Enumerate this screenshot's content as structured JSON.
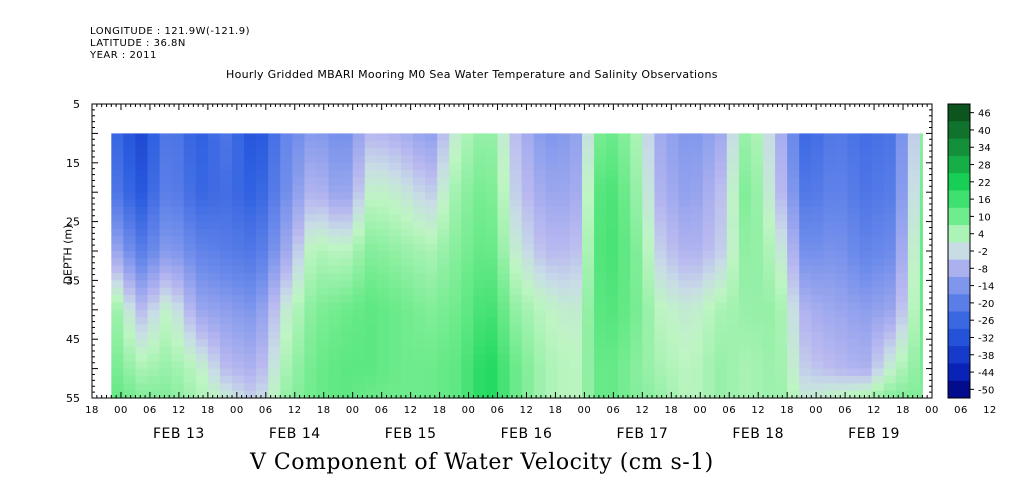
{
  "header": {
    "longitude": "LONGITUDE : 121.9W(-121.9)",
    "latitude": "LATITUDE : 36.8N",
    "year": "YEAR : 2011"
  },
  "title": "Hourly Gridded MBARI Mooring M0 Sea Water Temperature and Salinity Observations",
  "variable_title": "V Component of Water Velocity (cm s-1)",
  "colors": {
    "negative_strong": "#00008b",
    "negative_mid": "#3a6fe0",
    "near_zero_negative": "#b8b8ee",
    "near_zero_positive": "#bff2bf",
    "positive_mid": "#19e06a",
    "positive_strong": "#0b4f1c"
  },
  "chart_data": {
    "type": "heatmap",
    "title": "Hourly Gridded MBARI Mooring M0 Sea Water Temperature and Salinity Observations",
    "xlabel": "",
    "ylabel": "DEPTH (m)",
    "y_range": [
      5,
      55
    ],
    "y_inverted": true,
    "y_ticks": [
      5,
      15,
      25,
      35,
      45,
      55
    ],
    "x_range": [
      "FEB 12 18:00",
      "FEB 20 00:00"
    ],
    "x_hour_ticks": [
      "18",
      "00",
      "06",
      "12",
      "18",
      "00",
      "06",
      "12",
      "18",
      "00",
      "06",
      "12",
      "18",
      "00",
      "06",
      "12",
      "18",
      "00",
      "06",
      "12",
      "18",
      "00",
      "06",
      "12",
      "18",
      "00",
      "06",
      "12",
      "18",
      "00",
      "06",
      "12",
      "18",
      "00"
    ],
    "x_day_labels": [
      "FEB 13",
      "FEB 14",
      "FEB 15",
      "FEB 16",
      "FEB 17",
      "FEB 18",
      "FEB 19"
    ],
    "data_start": "FEB 12 22:00",
    "data_depth_top": 10,
    "colorbar": {
      "min": -50,
      "max": 50,
      "ticks": [
        "46",
        "40",
        "34",
        "28",
        "22",
        "16",
        "10",
        "4",
        "-2",
        "-8",
        "-14",
        "-20",
        "-26",
        "-32",
        "-38",
        "-44",
        "-50"
      ]
    },
    "profile_hours": [
      0,
      6,
      12,
      18,
      24,
      30,
      36,
      42,
      48,
      54,
      60,
      66,
      72,
      78,
      84,
      90,
      96,
      102,
      108,
      114,
      120,
      126,
      132,
      138,
      144,
      150,
      156,
      162,
      168
    ],
    "profile_depths": [
      10,
      20,
      30,
      40,
      50,
      55
    ],
    "v_values": [
      [
        -22,
        -18,
        -6,
        10,
        12,
        14
      ],
      [
        -32,
        -28,
        -18,
        -4,
        6,
        10
      ],
      [
        -18,
        -16,
        -10,
        4,
        8,
        10
      ],
      [
        -26,
        -24,
        -16,
        -8,
        4,
        6
      ],
      [
        -20,
        -22,
        -18,
        -10,
        -4,
        2
      ],
      [
        -30,
        -26,
        -20,
        -12,
        -6,
        -2
      ],
      [
        -16,
        -14,
        -8,
        2,
        6,
        8
      ],
      [
        -10,
        -4,
        6,
        10,
        12,
        12
      ],
      [
        -14,
        -10,
        4,
        12,
        14,
        14
      ],
      [
        -4,
        4,
        10,
        14,
        14,
        12
      ],
      [
        -6,
        2,
        8,
        12,
        12,
        12
      ],
      [
        -10,
        -2,
        6,
        10,
        12,
        12
      ],
      [
        4,
        8,
        10,
        12,
        14,
        14
      ],
      [
        10,
        12,
        14,
        18,
        22,
        22
      ],
      [
        -4,
        -2,
        2,
        8,
        12,
        12
      ],
      [
        -12,
        -8,
        -4,
        4,
        6,
        6
      ],
      [
        -10,
        -8,
        -4,
        2,
        4,
        4
      ],
      [
        14,
        18,
        18,
        16,
        14,
        14
      ],
      [
        8,
        10,
        12,
        12,
        10,
        10
      ],
      [
        -8,
        -6,
        -2,
        4,
        6,
        8
      ],
      [
        -12,
        -10,
        -6,
        2,
        4,
        4
      ],
      [
        -8,
        -4,
        -2,
        6,
        8,
        8
      ],
      [
        10,
        12,
        10,
        8,
        6,
        6
      ],
      [
        -4,
        -2,
        4,
        8,
        8,
        8
      ],
      [
        -24,
        -20,
        -14,
        -6,
        -2,
        2
      ],
      [
        -18,
        -16,
        -12,
        -8,
        -4,
        4
      ],
      [
        -22,
        -20,
        -16,
        -10,
        -6,
        6
      ],
      [
        -20,
        -18,
        -14,
        -8,
        4,
        10
      ],
      [
        6,
        8,
        10,
        10,
        10,
        10
      ]
    ]
  }
}
